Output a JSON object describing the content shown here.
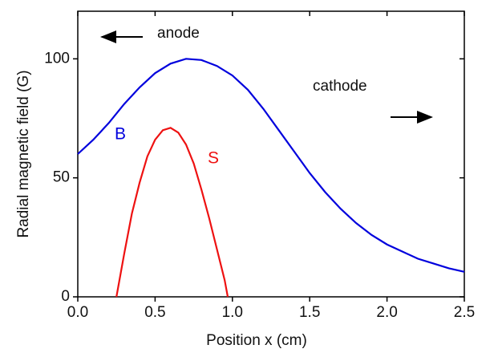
{
  "chart_data": {
    "type": "line",
    "xlabel": "Position x (cm)",
    "ylabel": "Radial magnetic field (G)",
    "xlim": [
      0,
      2.5
    ],
    "ylim": [
      0,
      120
    ],
    "xticks": [
      {
        "value": 0,
        "label": "0.0"
      },
      0.5,
      {
        "value": 1,
        "label": "1.0"
      },
      1.5,
      {
        "value": 2,
        "label": "2.0"
      },
      2.5
    ],
    "yticks": [
      0,
      50,
      100
    ],
    "series": [
      {
        "name": "B",
        "color": "#0000dd",
        "x": [
          0,
          0.1,
          0.2,
          0.3,
          0.4,
          0.5,
          0.6,
          0.7,
          0.8,
          0.9,
          1.0,
          1.1,
          1.2,
          1.3,
          1.4,
          1.5,
          1.6,
          1.7,
          1.8,
          1.9,
          2.0,
          2.1,
          2.2,
          2.3,
          2.4,
          2.5
        ],
        "values": [
          60,
          66,
          73,
          81,
          88,
          94,
          98,
          100,
          99.5,
          97,
          93,
          87,
          79,
          70,
          61,
          52,
          44,
          37,
          31,
          26,
          22,
          19,
          16,
          14,
          12,
          10.5
        ]
      },
      {
        "name": "S",
        "color": "#ee1111",
        "x": [
          0.25,
          0.3,
          0.35,
          0.4,
          0.45,
          0.5,
          0.55,
          0.6,
          0.65,
          0.7,
          0.75,
          0.8,
          0.85,
          0.9,
          0.95,
          0.97
        ],
        "values": [
          0,
          18,
          35,
          48,
          59,
          66,
          70,
          71,
          69,
          64,
          56,
          45,
          33,
          20,
          7,
          0
        ]
      }
    ],
    "annotations": [
      "anode",
      "cathode"
    ]
  }
}
